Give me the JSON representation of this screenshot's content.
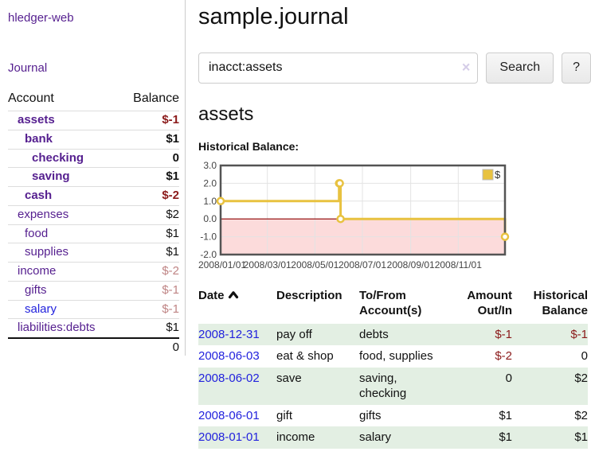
{
  "app": {
    "title": "hledger-web"
  },
  "sidebar": {
    "nav_journal": "Journal",
    "accounts_table": {
      "headers": {
        "account": "Account",
        "balance": "Balance"
      },
      "rows": [
        {
          "name": "assets",
          "indent": 1,
          "bold": true,
          "balance": "$-1",
          "balance_style": "neg-strong",
          "link_color": "purple"
        },
        {
          "name": "bank",
          "indent": 2,
          "bold": true,
          "balance": "$1",
          "balance_style": "pos",
          "link_color": "purple"
        },
        {
          "name": "checking",
          "indent": 3,
          "bold": true,
          "balance": "0",
          "balance_style": "pos",
          "link_color": "purple"
        },
        {
          "name": "saving",
          "indent": 3,
          "bold": true,
          "balance": "$1",
          "balance_style": "pos",
          "link_color": "purple"
        },
        {
          "name": "cash",
          "indent": 2,
          "bold": true,
          "balance": "$-2",
          "balance_style": "neg-strong",
          "link_color": "purple"
        },
        {
          "name": "expenses",
          "indent": 1,
          "bold": false,
          "balance": "$2",
          "balance_style": "pos",
          "link_color": "purple"
        },
        {
          "name": "food",
          "indent": 2,
          "bold": false,
          "balance": "$1",
          "balance_style": "pos",
          "link_color": "purple"
        },
        {
          "name": "supplies",
          "indent": 2,
          "bold": false,
          "balance": "$1",
          "balance_style": "pos",
          "link_color": "purple"
        },
        {
          "name": "income",
          "indent": 1,
          "bold": false,
          "balance": "$-2",
          "balance_style": "neg-soft",
          "link_color": "purple"
        },
        {
          "name": "gifts",
          "indent": 2,
          "bold": false,
          "balance": "$-1",
          "balance_style": "neg-soft",
          "link_color": "purple"
        },
        {
          "name": "salary",
          "indent": 2,
          "bold": false,
          "balance": "$-1",
          "balance_style": "neg-soft",
          "link_color": "blue"
        },
        {
          "name": "liabilities:debts",
          "indent": 1,
          "bold": false,
          "balance": "$1",
          "balance_style": "pos",
          "link_color": "purple"
        }
      ],
      "total": "0"
    }
  },
  "header": {
    "title": "sample.journal"
  },
  "search": {
    "value": "inacct:assets",
    "clear_icon": "×",
    "button_label": "Search",
    "help_label": "?"
  },
  "account_page": {
    "title": "assets",
    "chart_label": "Historical Balance:"
  },
  "chart_data": {
    "type": "line",
    "step": true,
    "series": [
      {
        "name": "$",
        "color": "#e8c240",
        "points": [
          [
            "2008-01-01",
            1
          ],
          [
            "2008-06-01",
            2
          ],
          [
            "2008-06-02",
            2
          ],
          [
            "2008-06-03",
            0
          ],
          [
            "2008-12-31",
            -1
          ]
        ]
      }
    ],
    "xlim": [
      "2008-01-01",
      "2008-12-31"
    ],
    "ylim": [
      -2,
      3
    ],
    "x_ticks": [
      "2008/01/01",
      "2008/03/01",
      "2008/05/01",
      "2008/07/01",
      "2008/09/01",
      "2008/11/01"
    ],
    "y_ticks": [
      3.0,
      2.0,
      1.0,
      0.0,
      -1.0,
      -2.0
    ],
    "legend": {
      "position": "top-right",
      "entries": [
        "$"
      ]
    },
    "grid": true,
    "colors": {
      "negative_region": "#fcdbdb",
      "zero_line": "#8b0000",
      "grid_line": "#e3e3e3",
      "border": "#545454",
      "tick_text": "#444444"
    }
  },
  "register_table": {
    "headers": [
      {
        "lines": [
          "Date"
        ],
        "align": "left",
        "sort": "asc"
      },
      {
        "lines": [
          "Description"
        ],
        "align": "left"
      },
      {
        "lines": [
          "To/From",
          "Account(s)"
        ],
        "align": "left"
      },
      {
        "lines": [
          "Amount",
          "Out/In"
        ],
        "align": "right"
      },
      {
        "lines": [
          "Historical",
          "Balance"
        ],
        "align": "right"
      }
    ],
    "rows": [
      {
        "date": "2008-12-31",
        "description": "pay off",
        "accounts": "debts",
        "amount": "$-1",
        "amount_neg": true,
        "balance": "$-1",
        "balance_neg": true,
        "shaded": true
      },
      {
        "date": "2008-06-03",
        "description": "eat & shop",
        "accounts": "food, supplies",
        "amount": "$-2",
        "amount_neg": true,
        "balance": "0",
        "balance_neg": false,
        "shaded": false
      },
      {
        "date": "2008-06-02",
        "description": "save",
        "accounts": "saving, checking",
        "amount": "0",
        "amount_neg": false,
        "balance": "$2",
        "balance_neg": false,
        "shaded": true
      },
      {
        "date": "2008-06-01",
        "description": "gift",
        "accounts": "gifts",
        "amount": "$1",
        "amount_neg": false,
        "balance": "$2",
        "balance_neg": false,
        "shaded": false
      },
      {
        "date": "2008-01-01",
        "description": "income",
        "accounts": "salary",
        "amount": "$1",
        "amount_neg": false,
        "balance": "$1",
        "balance_neg": false,
        "shaded": true
      }
    ]
  },
  "colors": {
    "link_purple": "#551f8f",
    "link_blue": "#2222dd",
    "negative_strong": "#8b1a1a",
    "negative_soft": "#bf8484",
    "row_stripe_green": "#e3efe3",
    "series_gold": "#e8c240"
  }
}
